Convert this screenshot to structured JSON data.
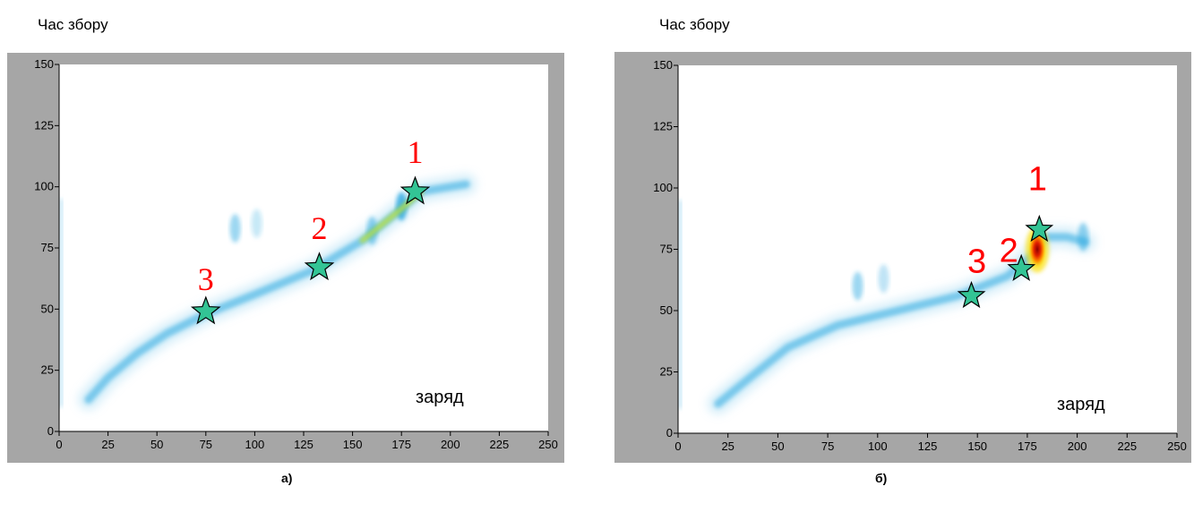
{
  "chart_data": [
    {
      "type": "heatmap",
      "ylabel": "Час збору",
      "xlabel": "заряд",
      "caption": "а)",
      "xlim": [
        0,
        250
      ],
      "ylim": [
        0,
        150
      ],
      "xticks": [
        0,
        25,
        50,
        75,
        100,
        125,
        150,
        175,
        200,
        225,
        250
      ],
      "yticks": [
        0,
        25,
        50,
        75,
        100,
        125,
        150
      ],
      "grid": false,
      "colors": {
        "frame": "#a6a6a6",
        "low": "#8fd0f0",
        "mid": "#29a7e0",
        "high": "#ffe000",
        "peak": "#8b0000",
        "marker": "#33c495",
        "label": "#ff0000"
      },
      "markers": [
        {
          "label": "1",
          "x": 182,
          "y": 98
        },
        {
          "label": "2",
          "x": 133,
          "y": 67
        },
        {
          "label": "3",
          "x": 75,
          "y": 49
        }
      ],
      "ridge": [
        [
          15,
          13
        ],
        [
          25,
          22
        ],
        [
          40,
          32
        ],
        [
          55,
          40
        ],
        [
          75,
          48
        ],
        [
          100,
          56
        ],
        [
          130,
          66
        ],
        [
          155,
          78
        ],
        [
          175,
          91
        ],
        [
          185,
          98
        ],
        [
          200,
          100
        ],
        [
          208,
          101
        ]
      ],
      "blobs": [
        {
          "x": 90,
          "y": 83,
          "i": 0.45
        },
        {
          "x": 101,
          "y": 85,
          "i": 0.25
        },
        {
          "x": 160,
          "y": 82,
          "i": 0.5
        },
        {
          "x": 175,
          "y": 92,
          "i": 0.8
        }
      ]
    },
    {
      "type": "heatmap",
      "ylabel": "Час збору",
      "xlabel": "заряд",
      "caption": "б)",
      "xlim": [
        0,
        250
      ],
      "ylim": [
        0,
        150
      ],
      "xticks": [
        0,
        25,
        50,
        75,
        100,
        125,
        150,
        175,
        200,
        225,
        250
      ],
      "yticks": [
        0,
        25,
        50,
        75,
        100,
        125,
        150
      ],
      "grid": false,
      "colors": {
        "frame": "#a6a6a6",
        "low": "#8fd0f0",
        "mid": "#29a7e0",
        "high": "#ffe000",
        "peak": "#8b0000",
        "marker": "#33c495",
        "label": "#ff0000"
      },
      "markers": [
        {
          "label": "1",
          "x": 181,
          "y": 83
        },
        {
          "label": "2",
          "x": 172,
          "y": 67
        },
        {
          "label": "3",
          "x": 147,
          "y": 56
        }
      ],
      "ridge": [
        [
          20,
          12
        ],
        [
          35,
          22
        ],
        [
          55,
          35
        ],
        [
          80,
          44
        ],
        [
          110,
          50
        ],
        [
          140,
          56
        ],
        [
          165,
          64
        ],
        [
          178,
          73
        ],
        [
          184,
          80
        ],
        [
          195,
          80
        ],
        [
          204,
          78
        ]
      ],
      "blobs": [
        {
          "x": 90,
          "y": 60,
          "i": 0.45
        },
        {
          "x": 103,
          "y": 63,
          "i": 0.3
        },
        {
          "x": 203,
          "y": 80,
          "i": 0.5
        }
      ],
      "hot": {
        "x": 180,
        "y": 75
      }
    }
  ]
}
